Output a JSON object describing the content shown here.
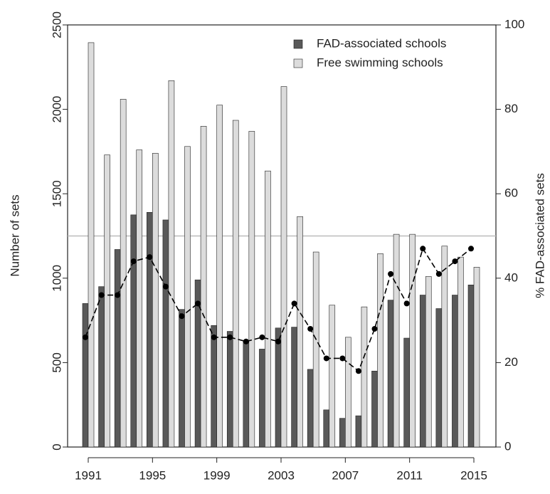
{
  "chart_data": {
    "type": "bar",
    "y_label": "Number of sets",
    "y2_label": "% FAD-associated sets",
    "x": [
      1991,
      1992,
      1993,
      1994,
      1995,
      1996,
      1997,
      1998,
      1999,
      2000,
      2001,
      2002,
      2003,
      2004,
      2005,
      2006,
      2007,
      2008,
      2009,
      2010,
      2011,
      2012,
      2013,
      2014,
      2015
    ],
    "xlim": [
      1991,
      2015
    ],
    "xticks": [
      1991,
      1995,
      1999,
      2003,
      2007,
      2011,
      2015
    ],
    "ylim": [
      0,
      2500
    ],
    "yticks": [
      0,
      500,
      1000,
      1500,
      2000,
      2500
    ],
    "y2lim": [
      0,
      100
    ],
    "y2ticks": [
      0,
      20,
      40,
      60,
      80,
      100
    ],
    "reference_line": {
      "axis": "y2",
      "value": 50,
      "color": "#bbbbbb"
    },
    "legend": "top-right",
    "series": [
      {
        "name": "FAD-associated schools",
        "type": "bar",
        "color": "#595959",
        "values": [
          850,
          950,
          1170,
          1375,
          1390,
          1345,
          815,
          990,
          720,
          685,
          630,
          580,
          705,
          710,
          460,
          220,
          170,
          185,
          450,
          870,
          645,
          900,
          820,
          900,
          960
        ]
      },
      {
        "name": "Free swimming schools",
        "type": "bar",
        "color": "#dcdcdc",
        "values": [
          2395,
          1730,
          2060,
          1760,
          1740,
          2170,
          1780,
          1900,
          2025,
          1935,
          1870,
          1635,
          2135,
          1365,
          1155,
          840,
          650,
          830,
          1145,
          1260,
          1260,
          1010,
          1190,
          1125,
          1065
        ]
      },
      {
        "type": "line",
        "axis": "y2",
        "color": "#000000",
        "values": [
          26,
          36,
          36,
          44,
          45,
          38,
          31,
          34,
          26,
          26,
          25,
          26,
          25,
          34,
          28,
          21,
          21,
          18,
          28,
          41,
          34,
          47,
          41,
          44,
          47
        ]
      }
    ]
  }
}
